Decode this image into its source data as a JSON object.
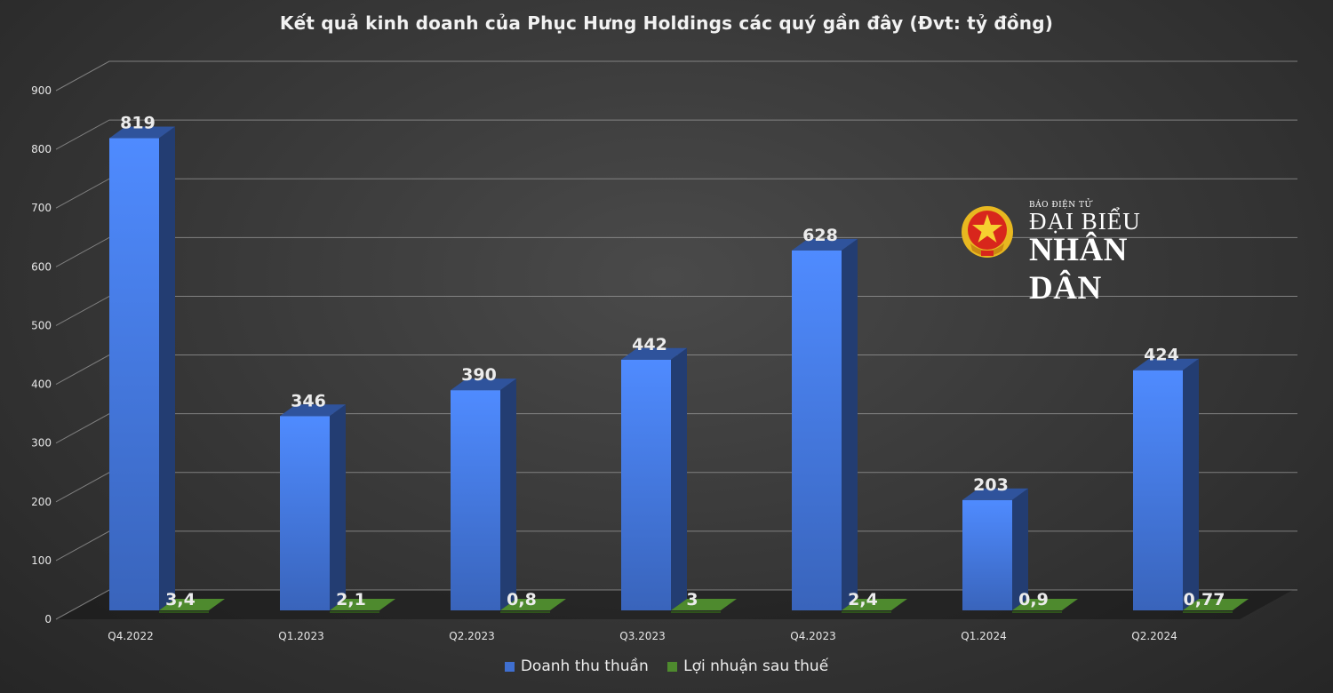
{
  "chart_data": {
    "type": "bar",
    "title": "Kết quả kinh doanh của Phục Hưng Holdings các quý gần đây (Đvt: tỷ đồng)",
    "categories": [
      "Q4.2022",
      "Q1.2023",
      "Q2.2023",
      "Q3.2023",
      "Q4.2023",
      "Q1.2024",
      "Q2.2024"
    ],
    "series": [
      {
        "name": "Doanh thu thuần",
        "values": [
          819,
          346,
          390,
          442,
          628,
          203,
          424
        ],
        "labels": [
          "819",
          "346",
          "390",
          "442",
          "628",
          "203",
          "424"
        ],
        "color": "#3f6fd0"
      },
      {
        "name": "Lợi nhuận sau thuế",
        "values": [
          3.4,
          2.1,
          0.8,
          3,
          2.4,
          0.9,
          0.77
        ],
        "labels": [
          "3,4",
          "2,1",
          "0,8",
          "3",
          "2,4",
          "0,9",
          "0,77"
        ],
        "color": "#4e8a2e"
      }
    ],
    "yticks": [
      "0",
      "100",
      "200",
      "300",
      "400",
      "500",
      "600",
      "700",
      "800",
      "900"
    ],
    "ylim": [
      0,
      900
    ],
    "xlabel": "",
    "ylabel": "",
    "grid": true,
    "legend": "bottom-center"
  },
  "watermark": {
    "line1": "BÁO ĐIỆN TỬ",
    "line2": "ĐẠI BIỂU",
    "line3": "NHÂN DÂN"
  },
  "colors": {
    "background": "#363636",
    "gridline": "#9a9a9a",
    "text": "#eeeeee",
    "emblem_red": "#d8261c",
    "emblem_gold": "#f0c020"
  }
}
